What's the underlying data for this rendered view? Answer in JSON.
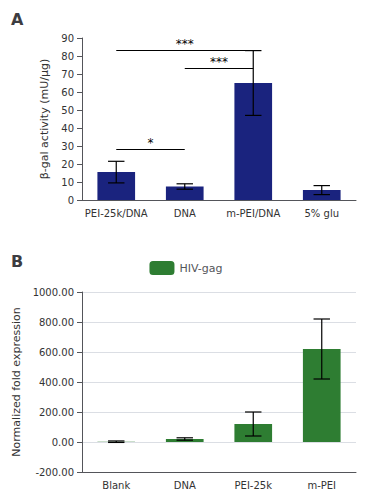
{
  "chart_data": [
    {
      "type": "bar",
      "title": "A",
      "categories": [
        "PEI-25k/DNA",
        "DNA",
        "m-PEI/DNA",
        "5% glu"
      ],
      "values": [
        15.5,
        7.5,
        65.0,
        5.5
      ],
      "errors": [
        6.0,
        1.5,
        18.0,
        2.5
      ],
      "color": "#1a237e",
      "ylabel": "β-gal activity (mU/μg)",
      "ylim": [
        0,
        90
      ],
      "yticks": [
        0,
        10,
        20,
        30,
        40,
        50,
        60,
        70,
        80,
        90
      ],
      "grid": false,
      "annotations": [
        {
          "text": "*",
          "from": "PEI-25k/DNA",
          "to": "DNA",
          "y": 28
        },
        {
          "text": "***",
          "from": "DNA",
          "to": "m-PEI/DNA",
          "y": 73
        },
        {
          "text": "***",
          "from": "PEI-25k/DNA",
          "to": "m-PEI/DNA",
          "y": 83
        }
      ]
    },
    {
      "type": "bar",
      "title": "B",
      "categories": [
        "Blank",
        "DNA",
        "PEI-25k",
        "m-PEI"
      ],
      "series": [
        {
          "name": "HIV-gag",
          "color": "#2e7d32",
          "values": [
            2.0,
            20.0,
            120.0,
            620.0
          ],
          "errors": [
            5.0,
            8.0,
            80.0,
            200.0
          ]
        }
      ],
      "ylabel": "Normalized fold expression",
      "ylim": [
        -200,
        1000
      ],
      "yticks": [
        {
          "value": -200,
          "label": "-200.00"
        },
        {
          "value": 0,
          "label": "0.00"
        },
        {
          "value": 200,
          "label": "200.00"
        },
        {
          "value": 400,
          "label": "400.00"
        },
        {
          "value": 600,
          "label": "600.00"
        },
        {
          "value": 800,
          "label": "800.00"
        },
        {
          "value": 1000,
          "label": "1000.00"
        }
      ],
      "grid": true,
      "legend": "top"
    }
  ]
}
